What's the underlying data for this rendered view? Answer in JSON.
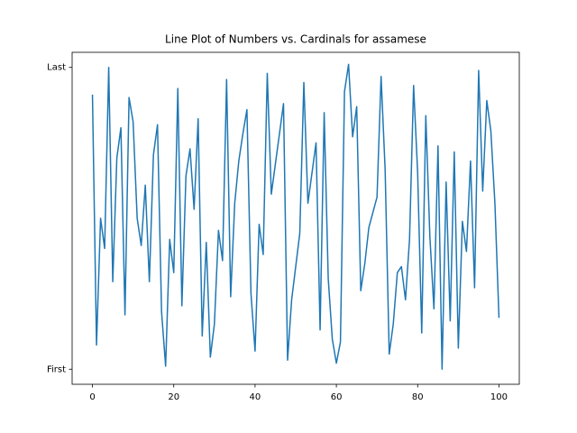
{
  "chart_data": {
    "type": "line",
    "title": "Line Plot of Numbers vs. Cardinals for assamese",
    "x": [
      0,
      1,
      2,
      3,
      4,
      5,
      6,
      7,
      8,
      9,
      10,
      11,
      12,
      13,
      14,
      15,
      16,
      17,
      18,
      19,
      20,
      21,
      22,
      23,
      24,
      25,
      26,
      27,
      28,
      29,
      30,
      31,
      32,
      33,
      34,
      35,
      36,
      37,
      38,
      39,
      40,
      41,
      42,
      43,
      44,
      45,
      46,
      47,
      48,
      49,
      50,
      51,
      52,
      53,
      54,
      55,
      56,
      57,
      58,
      59,
      60,
      61,
      62,
      63,
      64,
      65,
      66,
      67,
      68,
      69,
      70,
      71,
      72,
      73,
      74,
      75,
      76,
      77,
      78,
      79,
      80,
      81,
      82,
      83,
      84,
      85,
      86,
      87,
      88,
      89,
      90,
      91,
      92,
      93,
      94,
      95,
      96,
      97,
      98,
      99,
      100
    ],
    "series": [
      {
        "color": "#1f77b4",
        "values": [
          0.91,
          0.08,
          0.5,
          0.4,
          1.0,
          0.29,
          0.7,
          0.8,
          0.18,
          0.9,
          0.82,
          0.5,
          0.41,
          0.61,
          0.29,
          0.71,
          0.81,
          0.19,
          0.01,
          0.43,
          0.32,
          0.93,
          0.21,
          0.64,
          0.73,
          0.53,
          0.83,
          0.11,
          0.42,
          0.04,
          0.15,
          0.46,
          0.36,
          0.96,
          0.24,
          0.55,
          0.69,
          0.78,
          0.86,
          0.25,
          0.06,
          0.48,
          0.38,
          0.98,
          0.58,
          0.68,
          0.78,
          0.88,
          0.03,
          0.23,
          0.34,
          0.45,
          0.95,
          0.55,
          0.65,
          0.75,
          0.13,
          0.85,
          0.3,
          0.1,
          0.02,
          0.09,
          0.92,
          1.01,
          0.77,
          0.87,
          0.26,
          0.35,
          0.47,
          0.52,
          0.57,
          0.97,
          0.66,
          0.05,
          0.15,
          0.32,
          0.34,
          0.23,
          0.43,
          0.94,
          0.65,
          0.12,
          0.84,
          0.44,
          0.2,
          0.74,
          0.0,
          0.62,
          0.16,
          0.72,
          0.07,
          0.49,
          0.39,
          0.69,
          0.27,
          0.99,
          0.59,
          0.89,
          0.79,
          0.55,
          0.17
        ]
      }
    ],
    "xlim": [
      -5,
      105
    ],
    "xticks": [
      0,
      20,
      40,
      60,
      80,
      100
    ],
    "ylim": [
      -0.05,
      1.05
    ],
    "yticks": [
      {
        "value": 0,
        "label": "First"
      },
      {
        "value": 1,
        "label": "Last"
      }
    ]
  }
}
